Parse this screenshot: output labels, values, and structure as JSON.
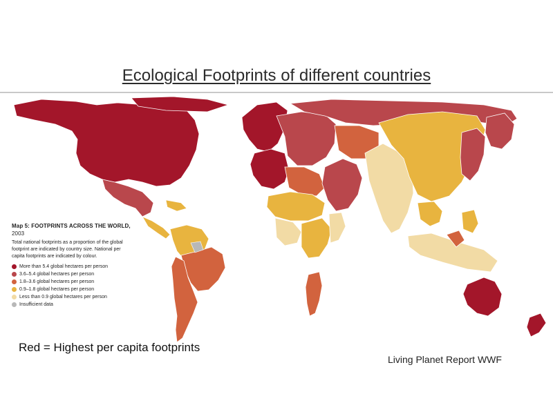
{
  "slide": {
    "title": "Ecological Footprints of different countries",
    "caption_left": "Red = Highest per capita footprints",
    "caption_right": "Living Planet Report WWF"
  },
  "legend": {
    "title": "Map 5: FOOTPRINTS ACROSS THE WORLD,",
    "year": "2003",
    "description": "Total national footprints as a proportion of the global footprint are indicated by country size. National per capita footprints are indicated by colour.",
    "items": [
      {
        "label": "More than 5.4 global hectares per person",
        "color": "#a3162a"
      },
      {
        "label": "3.6–5.4 global hectares per person",
        "color": "#b9474c"
      },
      {
        "label": "1.8–3.6 global hectares per person",
        "color": "#d2633e"
      },
      {
        "label": "0.9–1.8 global hectares per person",
        "color": "#e8b43f"
      },
      {
        "label": "Less than 0.9 global hectares per person",
        "color": "#f2dba5"
      },
      {
        "label": "Insufficient data",
        "color": "#b8b8b8"
      }
    ]
  },
  "palette": {
    "highest": "#a3162a",
    "high": "#b9474c",
    "medium": "#d2633e",
    "low": "#e8b43f",
    "lowest": "#f2dba5",
    "nodata": "#b8b8b8"
  }
}
